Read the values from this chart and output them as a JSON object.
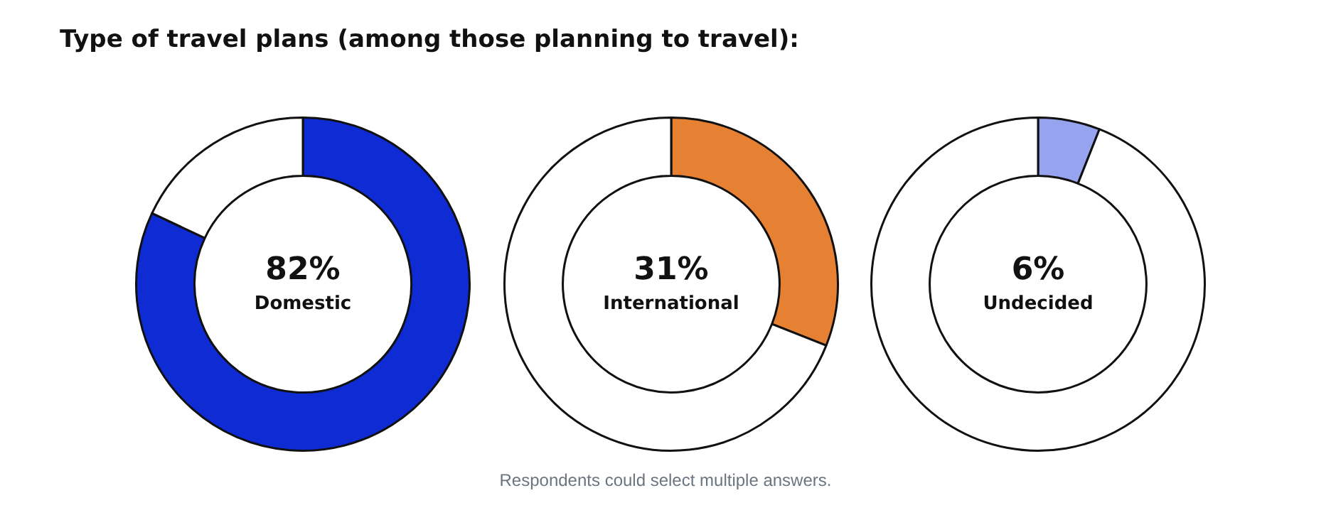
{
  "chart_data": [
    {
      "type": "donut",
      "title": "Type of travel plans (among those planning to travel):",
      "categories": [
        "Domestic",
        null
      ],
      "values": [
        82,
        18
      ],
      "colors": [
        "#0f2bd4",
        "#ffffff"
      ],
      "value_labels": [
        "82%",
        null
      ]
    },
    {
      "type": "donut",
      "categories": [
        "International",
        null
      ],
      "values": [
        31,
        69
      ],
      "colors": [
        "#e68033",
        "#ffffff"
      ],
      "value_labels": [
        "31%",
        null
      ],
      "annotations": [
        "Respondents could select multiple answers."
      ]
    },
    {
      "type": "donut",
      "categories": [
        "Undecided",
        null
      ],
      "values": [
        6,
        94
      ],
      "colors": [
        "#96a3ee",
        "#ffffff"
      ],
      "value_labels": [
        "6%",
        null
      ]
    }
  ]
}
